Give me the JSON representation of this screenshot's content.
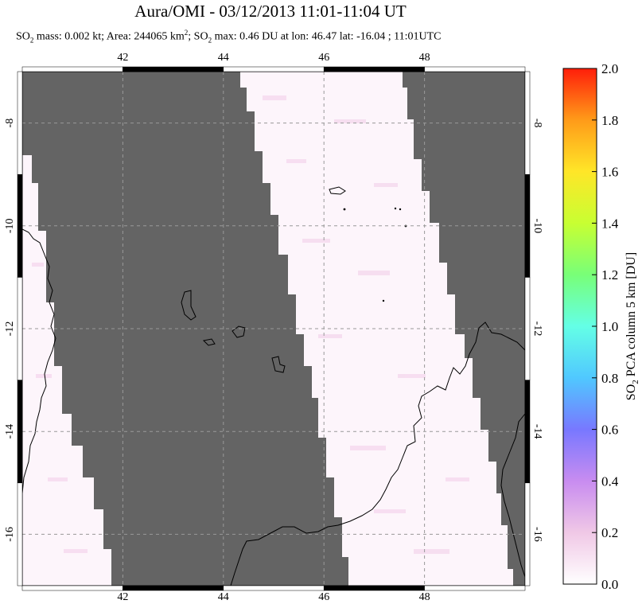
{
  "title": "Aura/OMI - 03/12/2013 11:01-11:04 UT",
  "subtitle": {
    "so2_prefix": "SO",
    "sub1": "2",
    "mass_text": " mass: 0.002 kt; Area: 244065 km",
    "sup": "2",
    "sep": "; SO",
    "sub2": "2",
    "max_text": " max: 0.46 DU at lon: 46.47 lat: -16.04 ; 11:01UTC"
  },
  "map": {
    "lon_ticks": [
      "42",
      "44",
      "46",
      "48"
    ],
    "lat_ticks": [
      "-8",
      "-10",
      "-12",
      "-14",
      "-16"
    ],
    "lon_values": [
      42,
      44,
      46,
      48
    ],
    "lat_values": [
      -8,
      -10,
      -12,
      -14,
      -16
    ],
    "lon_range": [
      40.0,
      50.0
    ],
    "lat_range": [
      -17.0,
      -7.0
    ],
    "no_data_color": "#646464",
    "grid": "dashed"
  },
  "colorbar": {
    "label": "SO2 PCA column 5 km [DU]",
    "label_parts": {
      "a": "SO",
      "sub": "2",
      "b": " PCA column 5 km [DU]"
    },
    "ticks": [
      "0.0",
      "0.2",
      "0.4",
      "0.6",
      "0.8",
      "1.0",
      "1.2",
      "1.4",
      "1.6",
      "1.8",
      "2.0"
    ],
    "range": [
      0.0,
      2.0
    ],
    "colors": [
      "#ffffff",
      "#f0c8e6",
      "#c88cf0",
      "#7878ff",
      "#50c8ff",
      "#64ffe6",
      "#78ff78",
      "#c8ff32",
      "#ffe628",
      "#ff9b19",
      "#ff1e0a"
    ]
  }
}
